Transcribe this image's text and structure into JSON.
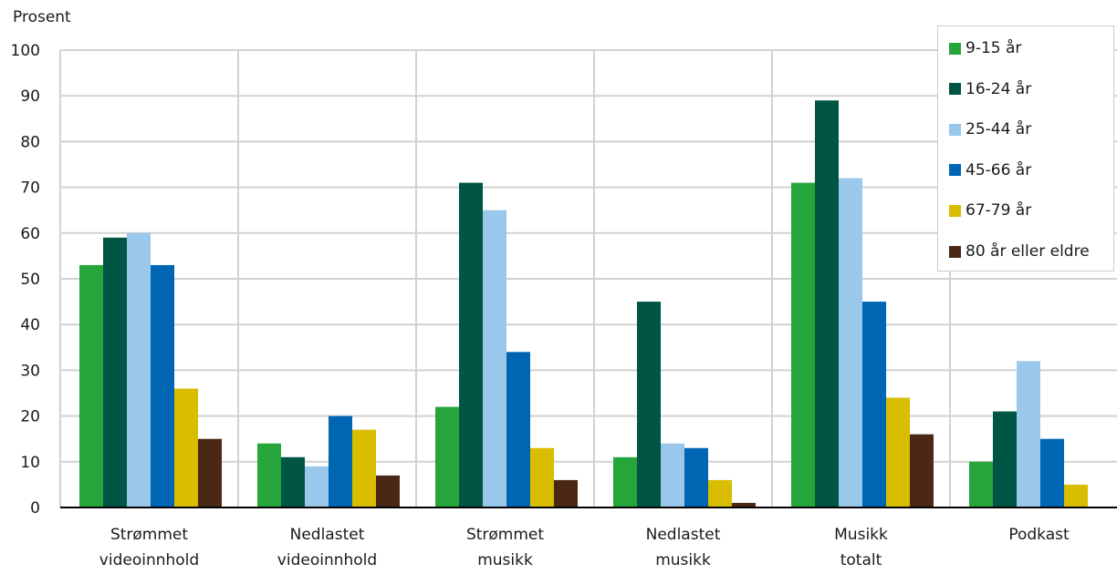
{
  "chart_data": {
    "type": "bar",
    "ylabel": "Prosent",
    "ylim": [
      0,
      100
    ],
    "yticks": [
      0,
      10,
      20,
      30,
      40,
      50,
      60,
      70,
      80,
      90,
      100
    ],
    "grid": true,
    "legend_position": "top-right",
    "categories": [
      [
        "Strømmet",
        "videoinnhold"
      ],
      [
        "Nedlastet",
        "videoinnhold"
      ],
      [
        "Strømmet",
        "musikk"
      ],
      [
        "Nedlastet",
        "musikk"
      ],
      [
        "Musikk",
        "totalt"
      ],
      [
        "Podkast"
      ]
    ],
    "series": [
      {
        "name": "9-15 år",
        "color": "#25a53a",
        "values": [
          53,
          14,
          22,
          11,
          71,
          10
        ]
      },
      {
        "name": "16-24 år",
        "color": "#005544",
        "values": [
          59,
          11,
          71,
          45,
          89,
          21
        ]
      },
      {
        "name": "25-44 år",
        "color": "#9ac8eb",
        "values": [
          60,
          9,
          65,
          14,
          72,
          32
        ]
      },
      {
        "name": "45-66 år",
        "color": "#0065b3",
        "values": [
          53,
          20,
          34,
          13,
          45,
          15
        ]
      },
      {
        "name": "67-79 år",
        "color": "#d8bd00",
        "values": [
          26,
          17,
          13,
          6,
          24,
          5
        ]
      },
      {
        "name": "80 år eller eldre",
        "color": "#4b2815",
        "values": [
          15,
          7,
          6,
          1,
          16,
          0
        ]
      }
    ]
  }
}
